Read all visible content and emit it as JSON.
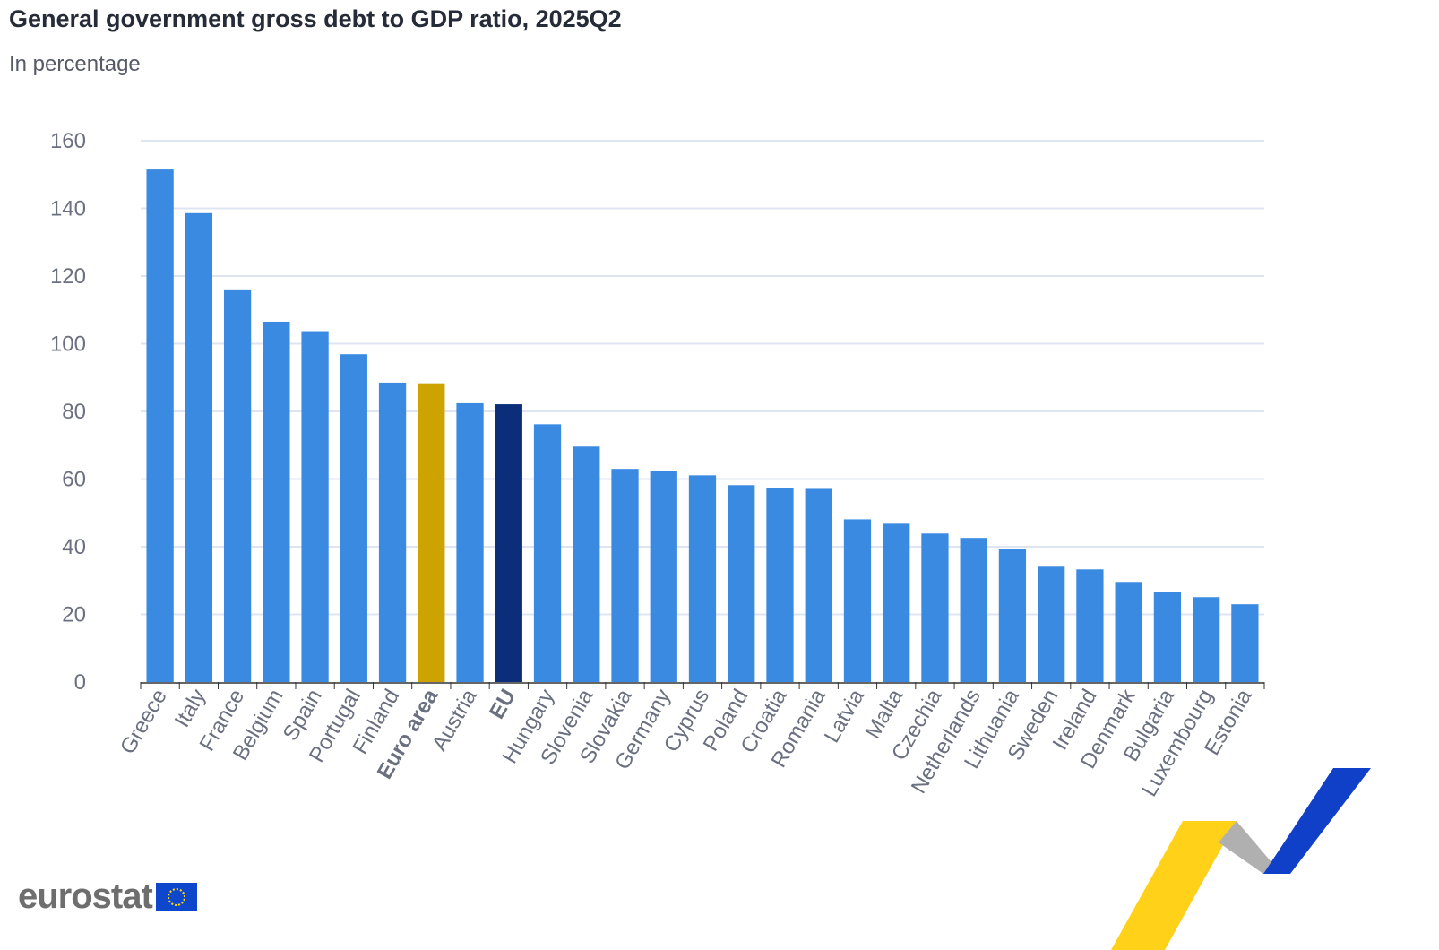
{
  "chart_data": {
    "type": "bar",
    "title": "General government gross debt to GDP ratio, 2025Q2",
    "subtitle": "In percentage",
    "ylim": [
      0,
      160
    ],
    "yticks": [
      0,
      20,
      40,
      60,
      80,
      100,
      120,
      140,
      160
    ],
    "grid": true,
    "categories": [
      "Greece",
      "Italy",
      "France",
      "Belgium",
      "Spain",
      "Portugal",
      "Finland",
      "Euro area",
      "Austria",
      "EU",
      "Hungary",
      "Slovenia",
      "Slovakia",
      "Germany",
      "Cyprus",
      "Poland",
      "Croatia",
      "Romania",
      "Latvia",
      "Malta",
      "Czechia",
      "Netherlands",
      "Lithuania",
      "Sweden",
      "Ireland",
      "Denmark",
      "Bulgaria",
      "Luxembourg",
      "Estonia"
    ],
    "values": [
      151.5,
      138.6,
      115.8,
      106.5,
      103.7,
      96.9,
      88.5,
      88.3,
      82.4,
      82.1,
      76.2,
      69.6,
      63.0,
      62.4,
      61.1,
      58.2,
      57.4,
      57.1,
      48.1,
      46.8,
      43.9,
      42.6,
      39.2,
      34.1,
      33.3,
      29.6,
      26.5,
      25.1,
      23.0
    ],
    "bold_categories": [
      "Euro area",
      "EU"
    ],
    "colors": {
      "default": "#3a8ae2",
      "Euro area": "#cca300",
      "EU": "#0b2d7a",
      "grid": "#dfe5f0",
      "axis_text": "#6b7080"
    }
  },
  "branding": {
    "logo_text": "eurostat"
  }
}
